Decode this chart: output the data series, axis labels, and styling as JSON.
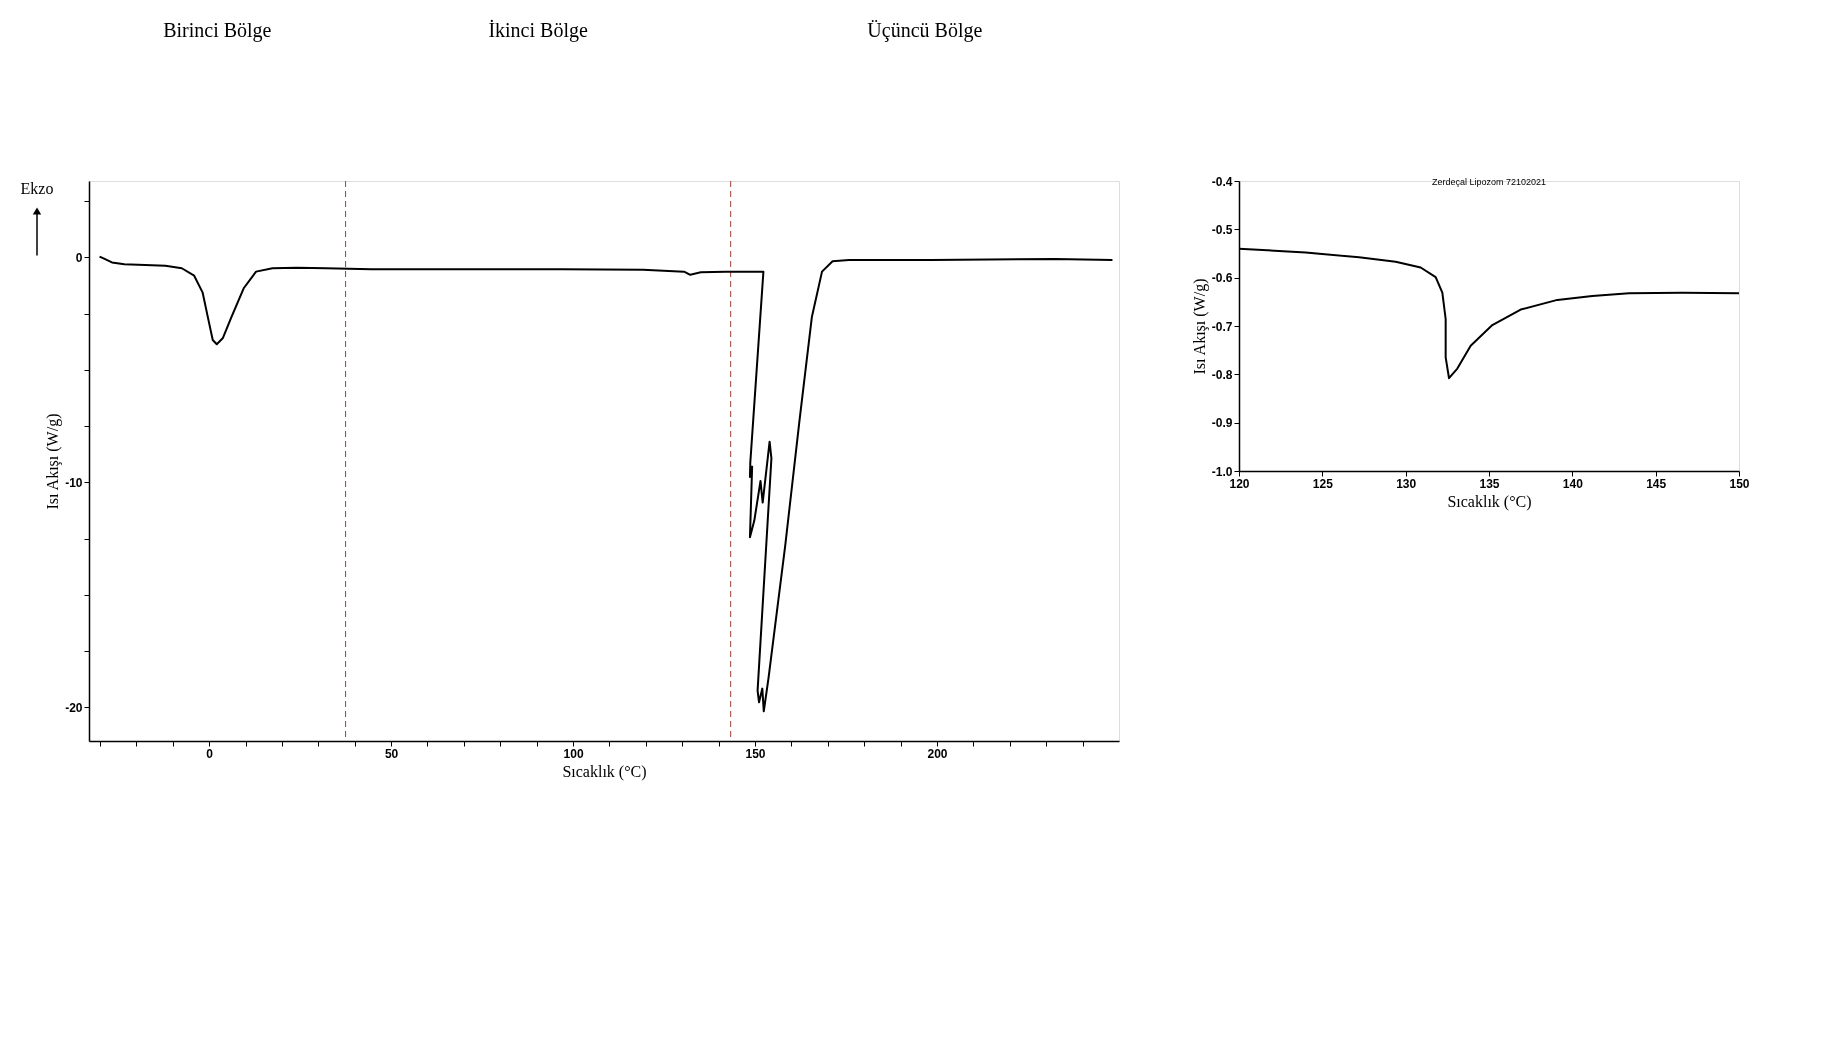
{
  "chart_data": [
    {
      "type": "line",
      "xlabel": "Sıcaklık (°C)",
      "ylabel": "Isı Akışı (W/g)",
      "annotations": [
        "Ekzo",
        "Birinci Bölge",
        "İkinci Bölge",
        "Üçüncü Bölge"
      ],
      "xlim": [
        -33,
        250
      ],
      "ylim": [
        -21.5,
        3.4
      ],
      "xticks": [
        {
          "value": -30,
          "label": null
        },
        {
          "value": -20,
          "label": null
        },
        {
          "value": -10,
          "label": null
        },
        0,
        {
          "value": 10,
          "label": null
        },
        {
          "value": 20,
          "label": null
        },
        {
          "value": 30,
          "label": null
        },
        {
          "value": 40,
          "label": null
        },
        50,
        {
          "value": 60,
          "label": null
        },
        {
          "value": 70,
          "label": null
        },
        {
          "value": 80,
          "label": null
        },
        {
          "value": 90,
          "label": null
        },
        100,
        {
          "value": 110,
          "label": null
        },
        {
          "value": 120,
          "label": null
        },
        {
          "value": 130,
          "label": null
        },
        {
          "value": 140,
          "label": null
        },
        150,
        {
          "value": 160,
          "label": null
        },
        {
          "value": 170,
          "label": null
        },
        {
          "value": 180,
          "label": null
        },
        {
          "value": 190,
          "label": null
        },
        200,
        {
          "value": 210,
          "label": null
        },
        {
          "value": 220,
          "label": null
        },
        {
          "value": 230,
          "label": null
        },
        {
          "value": 240,
          "label": null
        }
      ],
      "yticks": [
        {
          "value": 2.5,
          "label": null
        },
        0,
        {
          "value": -2.5,
          "label": null
        },
        {
          "value": -5,
          "label": null
        },
        {
          "value": -7.5,
          "label": null
        },
        -10,
        {
          "value": -12.5,
          "label": null
        },
        {
          "value": -15,
          "label": null
        },
        {
          "value": -17.5,
          "label": null
        },
        -20
      ],
      "grid": false,
      "ref_lines": [
        {
          "axis": "x",
          "value": 37.5,
          "color": "#a0403a",
          "line_style": "dashed"
        },
        {
          "axis": "x",
          "value": 143.3,
          "color": "#a0403a",
          "line_style": "dashed"
        }
      ],
      "series": [
        {
          "color": "#000000",
          "line_style": "solid",
          "x": [
            -30.1,
            -29,
            -26.7,
            -23.3,
            -17.6,
            -12,
            -7.5,
            -4.1,
            -1.8,
            -0.1,
            1.0,
            2.1,
            3.8,
            6.1,
            9.5,
            12.9,
            17.4,
            24.2,
            32.1,
            44.6,
            97,
            119.2,
            130.5,
            132.2,
            135.1,
            141.9,
            152.3,
            148.7,
            148.6,
            149.2,
            148.6,
            149.8,
            151.5,
            152.1,
            154.0,
            154.5,
            150.7,
            151.1,
            152.0,
            152.4,
            153.7,
            158.3,
            162.2,
            165.6,
            168.4,
            171.3,
            175.8,
            198.4,
            232.4,
            248.2
          ],
          "values": [
            0.04,
            -0.04,
            -0.22,
            -0.3,
            -0.33,
            -0.37,
            -0.48,
            -0.81,
            -1.55,
            -2.84,
            -3.67,
            -3.86,
            -3.58,
            -2.66,
            -1.37,
            -0.63,
            -0.48,
            -0.46,
            -0.48,
            -0.52,
            -0.52,
            -0.55,
            -0.63,
            -0.77,
            -0.66,
            -0.63,
            -0.63,
            -9.11,
            -9.76,
            -9.3,
            -12.44,
            -11.7,
            -9.94,
            -10.9,
            -8.19,
            -8.93,
            -19.26,
            -19.78,
            -19.17,
            -20.18,
            -18.7,
            -12.8,
            -7.27,
            -2.66,
            -0.63,
            -0.17,
            -0.11,
            -0.11,
            -0.07,
            -0.11
          ]
        }
      ]
    },
    {
      "type": "line",
      "title": "Zerdeçal Lipozom 72102021",
      "xlabel": "Sıcaklık (°C)",
      "ylabel": "Isı Akışı (W/g)",
      "xlim": [
        120,
        150
      ],
      "ylim": [
        -1.0,
        -0.4
      ],
      "xticks": [
        120,
        125,
        130,
        135,
        140,
        145,
        150
      ],
      "yticks": [
        -0.4,
        -0.5,
        -0.6,
        -0.7,
        -0.8,
        -0.9,
        {
          "value": -1.0,
          "label": "-1.0"
        }
      ],
      "grid": false,
      "series": [
        {
          "color": "#000000",
          "line_style": "solid",
          "x": [
            120,
            124.0,
            127.2,
            129.4,
            130.9,
            131.8,
            132.2,
            132.4,
            132.4,
            132.6,
            133.1,
            133.9,
            135.2,
            136.9,
            139.1,
            141.2,
            143.4,
            146.6,
            150
          ],
          "values": [
            -0.54,
            -0.548,
            -0.558,
            -0.567,
            -0.579,
            -0.599,
            -0.631,
            -0.686,
            -0.765,
            -0.808,
            -0.788,
            -0.741,
            -0.698,
            -0.666,
            -0.646,
            -0.638,
            -0.632,
            -0.631,
            -0.632
          ]
        }
      ]
    }
  ]
}
